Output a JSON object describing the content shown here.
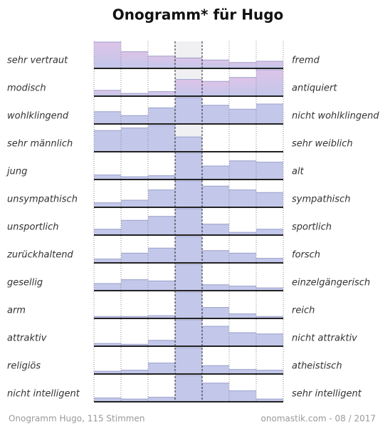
{
  "chart_data": {
    "type": "bar",
    "title": "Onogramm* für Hugo",
    "ylim": [
      0,
      100
    ],
    "color": "#c3c7ea",
    "rows": [
      {
        "left": "sehr vertraut",
        "right": "fremd",
        "values": [
          100,
          62,
          45,
          38,
          30,
          20,
          25
        ]
      },
      {
        "left": "modisch",
        "right": "antiquiert",
        "values": [
          20,
          8,
          15,
          62,
          55,
          70,
          100
        ]
      },
      {
        "left": "wohlklingend",
        "right": "nicht wohlklingend",
        "values": [
          45,
          30,
          60,
          100,
          70,
          55,
          75
        ]
      },
      {
        "left": "sehr männlich",
        "right": "sehr weiblich",
        "values": [
          80,
          90,
          100,
          55,
          0,
          0,
          0
        ]
      },
      {
        "left": "jung",
        "right": "alt",
        "values": [
          15,
          8,
          12,
          100,
          50,
          70,
          65
        ]
      },
      {
        "left": "unsympathisch",
        "right": "sympathisch",
        "values": [
          15,
          25,
          65,
          100,
          80,
          65,
          55
        ]
      },
      {
        "left": "unsportlich",
        "right": "sportlich",
        "values": [
          20,
          55,
          70,
          100,
          40,
          8,
          20
        ]
      },
      {
        "left": "zurückhaltend",
        "right": "forsch",
        "values": [
          12,
          35,
          55,
          100,
          45,
          35,
          15
        ]
      },
      {
        "left": "gesellig",
        "right": "einzelgängerisch",
        "values": [
          25,
          40,
          35,
          100,
          20,
          15,
          8
        ]
      },
      {
        "left": "arm",
        "right": "reich",
        "values": [
          5,
          5,
          8,
          100,
          40,
          15,
          5
        ]
      },
      {
        "left": "attraktiv",
        "right": "nicht attraktiv",
        "values": [
          8,
          5,
          20,
          100,
          75,
          50,
          45
        ]
      },
      {
        "left": "religiös",
        "right": "atheistisch",
        "values": [
          8,
          12,
          40,
          100,
          30,
          15,
          12
        ]
      },
      {
        "left": "nicht intelligent",
        "right": "sehr intelligent",
        "values": [
          12,
          8,
          15,
          100,
          70,
          40,
          8
        ]
      }
    ],
    "footer_left": "Onogramm Hugo, 115 Stimmen",
    "footer_right": "onomastik.com - 08 / 2017"
  }
}
